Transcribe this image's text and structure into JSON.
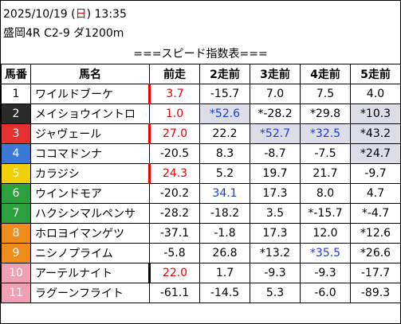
{
  "header": {
    "date_prefix": "2025/10/19 (",
    "weekday": "日",
    "date_suffix": ") 13:35",
    "race_info": "盛岡4R C2-9 ダ1200m"
  },
  "subtitle": "===スピード指数表===",
  "columns": [
    "馬番",
    "馬名",
    "前走",
    "2走前",
    "3走前",
    "4走前",
    "5走前"
  ],
  "colors": {
    "frame1": "#ffffff",
    "frame2": "#222222",
    "frame3": "#e63030",
    "frame4": "#3b79d6",
    "frame5": "#f0d000",
    "frame6": "#2ca03c",
    "frame7": "#f08c1e",
    "frame8": "#f0a0b4",
    "red_text": "#e60000",
    "blue_text": "#1a3cdc",
    "shade": "#dcdde6"
  },
  "rows": [
    {
      "no": "1",
      "name": "ワイルドブーケ",
      "bg": "#ffffff",
      "fg": "#000000",
      "v": [
        "3.7",
        "-15.7",
        "7.0",
        "7.5",
        "4.0"
      ],
      "cls": [
        "red",
        "",
        "",
        "",
        ""
      ],
      "shade": [
        false,
        false,
        false,
        false,
        false
      ],
      "bar": "red"
    },
    {
      "no": "2",
      "name": "メイショウイントロ",
      "bg": "#2a2a2a",
      "fg": "#ffffff",
      "v": [
        "1.0",
        "*52.6",
        "*-28.2",
        "*29.8",
        "*10.3"
      ],
      "cls": [
        "red",
        "blue",
        "",
        "",
        ""
      ],
      "shade": [
        false,
        true,
        false,
        false,
        true
      ],
      "bar": "none"
    },
    {
      "no": "3",
      "name": "ジャヴェール",
      "bg": "#e63030",
      "fg": "#ffffff",
      "v": [
        "27.0",
        "22.2",
        "*52.7",
        "*32.5",
        "*43.2"
      ],
      "cls": [
        "red bold",
        "",
        "blue bold",
        "blue",
        ""
      ],
      "shade": [
        false,
        false,
        true,
        true,
        true
      ],
      "bar": "red"
    },
    {
      "no": "4",
      "name": "ココマドンナ",
      "bg": "#3b79d6",
      "fg": "#ffffff",
      "v": [
        "-20.5",
        "8.3",
        "-8.7",
        "-7.5",
        "*24.7"
      ],
      "cls": [
        "",
        "",
        "",
        "",
        ""
      ],
      "shade": [
        false,
        false,
        false,
        false,
        true
      ],
      "bar": "none"
    },
    {
      "no": "5",
      "name": "カラジシ",
      "bg": "#f0d000",
      "fg": "#ffffff",
      "v": [
        "24.3",
        "5.2",
        "19.7",
        "21.7",
        "-9.7"
      ],
      "cls": [
        "red",
        "",
        "",
        "",
        ""
      ],
      "shade": [
        false,
        false,
        false,
        false,
        false
      ],
      "bar": "red"
    },
    {
      "no": "6",
      "name": "ウインドモア",
      "bg": "#2ca03c",
      "fg": "#ffffff",
      "v": [
        "-20.2",
        "34.1",
        "17.3",
        "8.0",
        "4.7"
      ],
      "cls": [
        "",
        "blue",
        "",
        "",
        ""
      ],
      "shade": [
        false,
        false,
        false,
        false,
        false
      ],
      "bar": "none"
    },
    {
      "no": "7",
      "name": "ハクシンマルペンサ",
      "bg": "#2ca03c",
      "fg": "#ffffff",
      "v": [
        "-28.2",
        "-18.2",
        "3.5",
        "*-15.7",
        "*-4.7"
      ],
      "cls": [
        "",
        "",
        "",
        "",
        ""
      ],
      "shade": [
        false,
        false,
        false,
        false,
        false
      ],
      "bar": "none"
    },
    {
      "no": "8",
      "name": "ホロヨイマンゲツ",
      "bg": "#f08c1e",
      "fg": "#ffffff",
      "v": [
        "-37.1",
        "-1.8",
        "17.3",
        "12.0",
        "*12.6"
      ],
      "cls": [
        "",
        "",
        "",
        "",
        ""
      ],
      "shade": [
        false,
        false,
        false,
        false,
        false
      ],
      "bar": "none"
    },
    {
      "no": "9",
      "name": "ニシノプライム",
      "bg": "#f08c1e",
      "fg": "#ffffff",
      "v": [
        "-5.8",
        "26.8",
        "*13.2",
        "*35.5",
        "*26.6"
      ],
      "cls": [
        "",
        "",
        "",
        "blue",
        ""
      ],
      "shade": [
        false,
        false,
        false,
        false,
        false
      ],
      "bar": "none"
    },
    {
      "no": "10",
      "name": "アーテルナイト",
      "bg": "#f0a0b4",
      "fg": "#ffffff",
      "v": [
        "22.0",
        "1.7",
        "-9.3",
        "-9.3",
        "-17.7"
      ],
      "cls": [
        "red",
        "",
        "",
        "",
        ""
      ],
      "shade": [
        false,
        false,
        false,
        false,
        false
      ],
      "bar": "black"
    },
    {
      "no": "11",
      "name": "ラグーンフライト",
      "bg": "#f0a0b4",
      "fg": "#ffffff",
      "v": [
        "-61.1",
        "-14.5",
        "5.3",
        "-6.0",
        "-89.3"
      ],
      "cls": [
        "",
        "",
        "",
        "",
        ""
      ],
      "shade": [
        false,
        false,
        false,
        false,
        false
      ],
      "bar": "none"
    }
  ]
}
